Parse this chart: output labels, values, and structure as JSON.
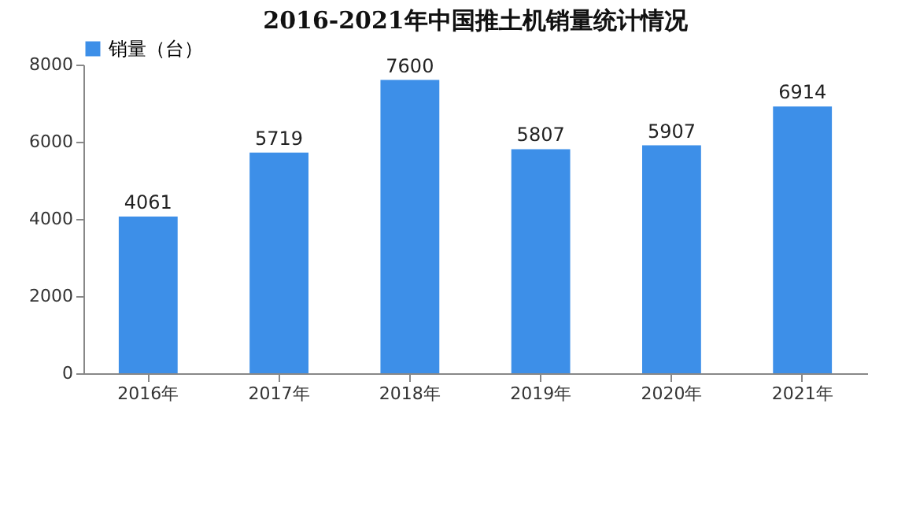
{
  "chart_data": {
    "type": "bar",
    "title": "2016-2021年中国推土机销量统计情况",
    "categories": [
      "2016年",
      "2017年",
      "2018年",
      "2019年",
      "2020年",
      "2021年"
    ],
    "series": [
      {
        "name": "销量（台）",
        "color": "#3d8fe8",
        "values": [
          4061,
          5719,
          7600,
          5807,
          5907,
          6914
        ]
      }
    ],
    "ylim": [
      0,
      8000
    ],
    "yticks": [
      0,
      2000,
      4000,
      6000,
      8000
    ],
    "grid": false,
    "legend": "top",
    "data_labels": true
  }
}
